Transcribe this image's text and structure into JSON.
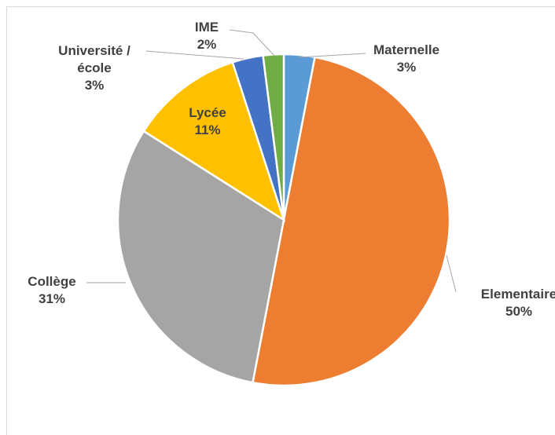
{
  "chart_data": {
    "type": "pie",
    "categories": [
      "Maternelle",
      "Elementaire",
      "Collège",
      "Lycée",
      "Université / école",
      "IME"
    ],
    "values": [
      3,
      50,
      31,
      11,
      3,
      2
    ],
    "value_labels": [
      "3%",
      "50%",
      "31%",
      "11%",
      "3%",
      "2%"
    ],
    "colors": [
      "#5b9bd5",
      "#ed7d31",
      "#a5a5a5",
      "#ffc000",
      "#4472c4",
      "#70ad47"
    ]
  }
}
